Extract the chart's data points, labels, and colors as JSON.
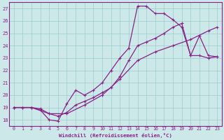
{
  "xlabel": "Windchill (Refroidissement éolien,°C)",
  "xlim": [
    -0.5,
    23.5
  ],
  "ylim": [
    17.5,
    27.5
  ],
  "yticks": [
    18,
    19,
    20,
    21,
    22,
    23,
    24,
    25,
    26,
    27
  ],
  "xticks": [
    0,
    1,
    2,
    3,
    4,
    5,
    6,
    7,
    8,
    9,
    10,
    11,
    12,
    13,
    14,
    15,
    16,
    17,
    18,
    19,
    20,
    21,
    22,
    23
  ],
  "background_color": "#cce8e8",
  "grid_color": "#99cccc",
  "line_color": "#882288",
  "line1_x": [
    0,
    1,
    2,
    3,
    4,
    5,
    6,
    7,
    8,
    9,
    10,
    11,
    12,
    13,
    14,
    15,
    16,
    17,
    18,
    19,
    20,
    21,
    22,
    23
  ],
  "line1_y": [
    19.0,
    19.0,
    19.0,
    18.8,
    18.0,
    17.9,
    19.3,
    20.4,
    20.0,
    20.4,
    21.0,
    22.0,
    23.0,
    23.8,
    27.2,
    27.2,
    26.6,
    26.6,
    26.1,
    25.5,
    23.2,
    23.2,
    23.0,
    23.1
  ],
  "line2_x": [
    0,
    1,
    2,
    3,
    4,
    5,
    6,
    7,
    8,
    9,
    10,
    11,
    12,
    13,
    14,
    15,
    16,
    17,
    18,
    19,
    20,
    21,
    22,
    23
  ],
  "line2_y": [
    19.0,
    19.0,
    19.0,
    18.9,
    18.5,
    18.3,
    18.6,
    19.2,
    19.5,
    19.8,
    20.2,
    20.6,
    21.5,
    22.8,
    24.0,
    24.3,
    24.6,
    25.0,
    25.5,
    25.8,
    23.2,
    24.8,
    23.2,
    23.1
  ],
  "line3_x": [
    0,
    2,
    4,
    6,
    8,
    10,
    12,
    14,
    16,
    18,
    20,
    22,
    23
  ],
  "line3_y": [
    19.0,
    19.0,
    18.5,
    18.5,
    19.2,
    20.0,
    21.3,
    22.8,
    23.5,
    24.0,
    24.5,
    25.2,
    25.5
  ],
  "marker": "+"
}
